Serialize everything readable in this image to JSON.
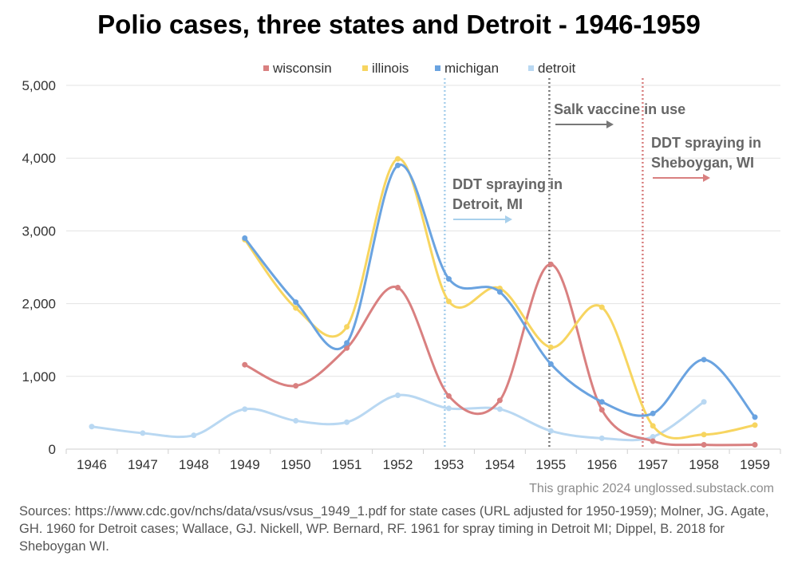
{
  "title": "Polio cases, three states and Detroit - 1946-1959",
  "credit": "This graphic 2024 unglossed.substack.com",
  "sources": "Sources: https://www.cdc.gov/nchs/data/vsus/vsus_1949_1.pdf for state cases (URL adjusted for 1950-1959); Molner, JG. Agate, GH. 1960 for Detroit cases; Wallace, GJ. Nickell, WP. Bernard, RF. 1961 for spray timing in Detroit MI; Dippel, B. 2018 for Sheboygan WI.",
  "chart_data": {
    "type": "line",
    "title": "Polio cases, three states and Detroit - 1946-1959",
    "x": [
      1946,
      1947,
      1948,
      1949,
      1950,
      1951,
      1952,
      1953,
      1954,
      1955,
      1956,
      1957,
      1958,
      1959
    ],
    "ylim": [
      0,
      5000
    ],
    "yticks": [
      0,
      1000,
      2000,
      3000,
      4000,
      5000
    ],
    "ytick_labels": [
      "0",
      "1,000",
      "2,000",
      "3,000",
      "4,000",
      "5,000"
    ],
    "grid": "horizontal",
    "legend_position": "top-center",
    "series": [
      {
        "name": "wisconsin",
        "color": "#d98080",
        "values": [
          null,
          null,
          null,
          1160,
          870,
          1390,
          2220,
          730,
          670,
          2540,
          540,
          110,
          60,
          60
        ]
      },
      {
        "name": "illinois",
        "color": "#f7d560",
        "values": [
          null,
          null,
          null,
          2880,
          1940,
          1680,
          3990,
          2030,
          2210,
          1400,
          1950,
          320,
          200,
          330
        ]
      },
      {
        "name": "michigan",
        "color": "#6aa3e0",
        "values": [
          null,
          null,
          null,
          2900,
          2020,
          1460,
          3900,
          2340,
          2160,
          1170,
          650,
          490,
          1230,
          440
        ]
      },
      {
        "name": "detroit",
        "color": "#b9d8f2",
        "values": [
          310,
          220,
          190,
          550,
          390,
          370,
          740,
          560,
          550,
          250,
          150,
          170,
          650,
          null
        ]
      }
    ],
    "annotations": [
      {
        "lines": [
          "DDT spraying in",
          "Detroit, MI"
        ],
        "x_year": 1952.92,
        "color": "#a8d0ec"
      },
      {
        "lines": [
          "Salk vaccine in use"
        ],
        "x_year": 1954.97,
        "color": "#777777"
      },
      {
        "lines": [
          "DDT spraying in",
          "Sheboygan, WI"
        ],
        "x_year": 1956.8,
        "color": "#d98080"
      }
    ]
  }
}
